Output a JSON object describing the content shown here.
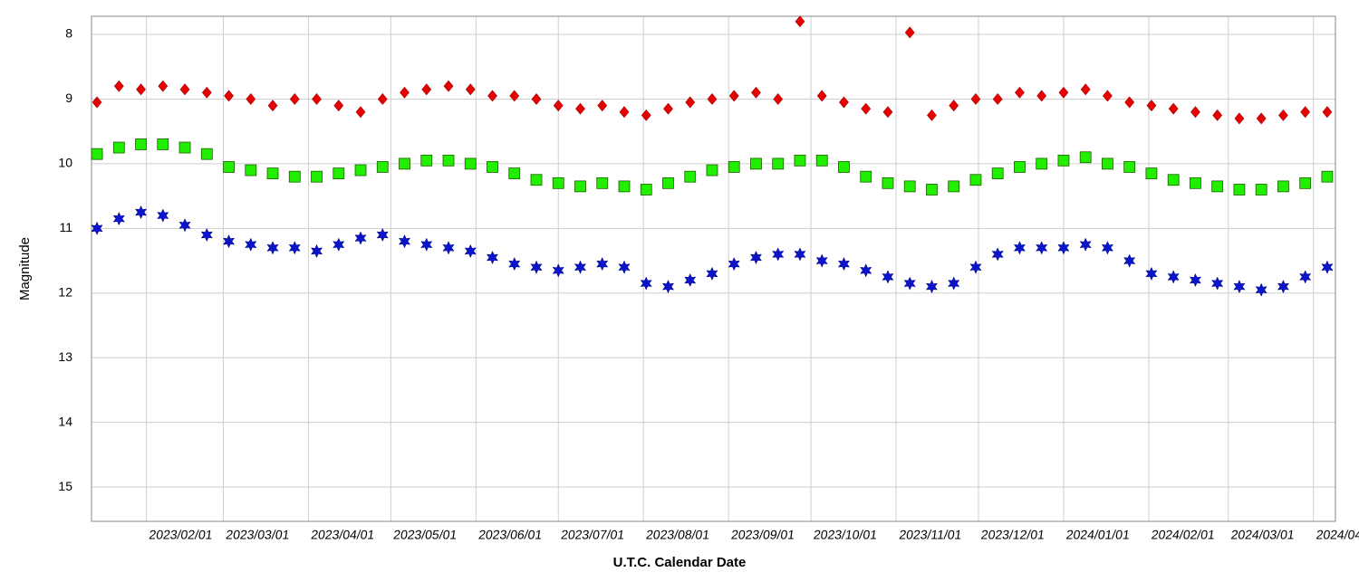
{
  "chart_data": {
    "type": "scatter",
    "x_label": "U.T.C. Calendar Date",
    "y_label": "Magnitude",
    "xlim": [
      "2023/01/12",
      "2024/04/09"
    ],
    "xticks": [
      "2023/02/01",
      "2023/03/01",
      "2023/04/01",
      "2023/05/01",
      "2023/06/01",
      "2023/07/01",
      "2023/08/01",
      "2023/09/01",
      "2023/10/01",
      "2023/11/01",
      "2023/12/01",
      "2024/01/01",
      "2024/02/01",
      "2024/03/01",
      "2024/04/01"
    ],
    "ylim": [
      15.53,
      7.72
    ],
    "yticks": [
      8,
      9,
      10,
      11,
      12,
      13,
      14,
      15
    ],
    "grid": true,
    "x": [
      "2023/01/14",
      "2023/01/22",
      "2023/01/30",
      "2023/02/07",
      "2023/02/15",
      "2023/02/23",
      "2023/03/03",
      "2023/03/11",
      "2023/03/19",
      "2023/03/27",
      "2023/04/04",
      "2023/04/12",
      "2023/04/20",
      "2023/04/28",
      "2023/05/06",
      "2023/05/14",
      "2023/05/22",
      "2023/05/30",
      "2023/06/07",
      "2023/06/15",
      "2023/06/23",
      "2023/07/01",
      "2023/07/09",
      "2023/07/17",
      "2023/07/25",
      "2023/08/02",
      "2023/08/10",
      "2023/08/18",
      "2023/08/26",
      "2023/09/03",
      "2023/09/11",
      "2023/09/19",
      "2023/09/27",
      "2023/10/05",
      "2023/10/13",
      "2023/10/21",
      "2023/10/29",
      "2023/11/06",
      "2023/11/14",
      "2023/11/22",
      "2023/11/30",
      "2023/12/08",
      "2023/12/16",
      "2023/12/24",
      "2024/01/01",
      "2024/01/09",
      "2024/01/17",
      "2024/01/25",
      "2024/02/02",
      "2024/02/10",
      "2024/02/18",
      "2024/02/26",
      "2024/03/05",
      "2024/03/13",
      "2024/03/21",
      "2024/03/29",
      "2024/04/06"
    ],
    "series": [
      {
        "color": "#e60000",
        "marker": "diamond",
        "values": [
          9.05,
          8.8,
          8.85,
          8.8,
          8.85,
          8.9,
          8.95,
          9.0,
          9.1,
          9.0,
          9.0,
          9.1,
          9.2,
          9.0,
          8.9,
          8.85,
          8.8,
          8.85,
          8.95,
          8.95,
          9.0,
          9.1,
          9.15,
          9.1,
          9.2,
          9.25,
          9.15,
          9.05,
          9.0,
          8.95,
          8.9,
          9.0,
          7.8,
          8.95,
          9.05,
          9.15,
          9.2,
          7.97,
          9.25,
          9.1,
          9.0,
          9.0,
          8.9,
          8.95,
          8.9,
          8.85,
          8.95,
          9.05,
          9.1,
          9.15,
          9.2,
          9.25,
          9.3,
          9.3,
          9.25,
          9.2,
          9.2
        ]
      },
      {
        "color": "#22ee00",
        "marker": "square",
        "values": [
          9.85,
          9.75,
          9.7,
          9.7,
          9.75,
          9.85,
          10.05,
          10.1,
          10.15,
          10.2,
          10.2,
          10.15,
          10.1,
          10.05,
          10.0,
          9.95,
          9.95,
          10.0,
          10.05,
          10.15,
          10.25,
          10.3,
          10.35,
          10.3,
          10.35,
          10.4,
          10.3,
          10.2,
          10.1,
          10.05,
          10.0,
          10.0,
          9.95,
          9.95,
          10.05,
          10.2,
          10.3,
          10.35,
          10.4,
          10.35,
          10.25,
          10.15,
          10.05,
          10.0,
          9.95,
          9.9,
          10.0,
          10.05,
          10.15,
          10.25,
          10.3,
          10.35,
          10.4,
          10.4,
          10.35,
          10.3,
          10.2
        ]
      },
      {
        "color": "#0a14c8",
        "marker": "star",
        "values": [
          11.0,
          10.85,
          10.75,
          10.8,
          10.95,
          11.1,
          11.2,
          11.25,
          11.3,
          11.3,
          11.35,
          11.25,
          11.15,
          11.1,
          11.2,
          11.25,
          11.3,
          11.35,
          11.45,
          11.55,
          11.6,
          11.65,
          11.6,
          11.55,
          11.6,
          11.85,
          11.9,
          11.8,
          11.7,
          11.55,
          11.45,
          11.4,
          11.4,
          11.5,
          11.55,
          11.65,
          11.75,
          11.85,
          11.9,
          11.85,
          11.6,
          11.4,
          11.3,
          11.3,
          11.3,
          11.25,
          11.3,
          11.5,
          11.7,
          11.75,
          11.8,
          11.85,
          11.9,
          11.95,
          11.9,
          11.75,
          11.6
        ]
      }
    ]
  }
}
